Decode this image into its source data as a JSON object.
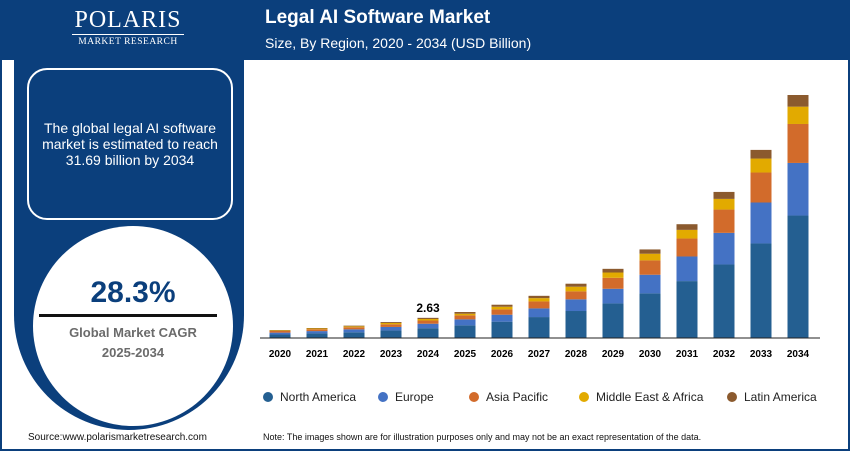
{
  "brand": {
    "name": "POLARIS",
    "sub": "MARKET RESEARCH"
  },
  "header": {
    "title": "Legal AI Software Market",
    "subtitle": "Size, By Region, 2020 - 2034 (USD Billion)"
  },
  "info": {
    "text": "The global legal AI software market is estimated to reach 31.69 billion by 2034"
  },
  "cagr": {
    "value": "28.3%",
    "label_line1": "Global Market CAGR",
    "label_line2": "2025-2034"
  },
  "footer": {
    "source": "Source:www.polarismarketresearch.com",
    "note": "Note: The images shown are for illustration purposes only and may not be an exact representation of the data."
  },
  "chart_data": {
    "type": "bar",
    "stacked": true,
    "title": "Legal AI Software Market",
    "subtitle": "Size, By Region, 2020 - 2034 (USD Billion)",
    "categories": [
      "2020",
      "2021",
      "2022",
      "2023",
      "2024",
      "2025",
      "2026",
      "2027",
      "2028",
      "2029",
      "2030",
      "2031",
      "2032",
      "2033",
      "2034"
    ],
    "ylim": [
      0,
      32
    ],
    "grid": false,
    "legend": "bottom",
    "annotations": [
      {
        "category": "2024",
        "text": "2.63"
      }
    ],
    "series": [
      {
        "name": "North America",
        "color": "#245f91",
        "values": [
          0.46,
          0.6,
          0.75,
          0.99,
          1.28,
          1.65,
          2.13,
          2.73,
          3.52,
          4.51,
          5.82,
          7.42,
          9.59,
          12.33,
          15.97
        ]
      },
      {
        "name": "Europe",
        "color": "#4472c4",
        "values": [
          0.24,
          0.3,
          0.38,
          0.45,
          0.58,
          0.78,
          0.91,
          1.13,
          1.52,
          1.91,
          2.43,
          3.21,
          4.12,
          5.34,
          6.86
        ]
      },
      {
        "name": "Asia Pacific",
        "color": "#d26b2b",
        "values": [
          0.22,
          0.24,
          0.27,
          0.35,
          0.42,
          0.52,
          0.69,
          0.91,
          1.04,
          1.43,
          1.87,
          2.34,
          3.04,
          3.91,
          5.08
        ]
      },
      {
        "name": "Middle East & Africa",
        "color": "#e2aa00",
        "values": [
          0.07,
          0.1,
          0.12,
          0.17,
          0.2,
          0.22,
          0.35,
          0.43,
          0.61,
          0.69,
          0.87,
          1.13,
          1.39,
          1.82,
          2.26
        ]
      },
      {
        "name": "Latin America",
        "color": "#8b5a2e",
        "values": [
          0.05,
          0.06,
          0.09,
          0.12,
          0.15,
          0.22,
          0.26,
          0.3,
          0.39,
          0.48,
          0.56,
          0.74,
          0.91,
          1.13,
          1.52
        ]
      }
    ]
  }
}
